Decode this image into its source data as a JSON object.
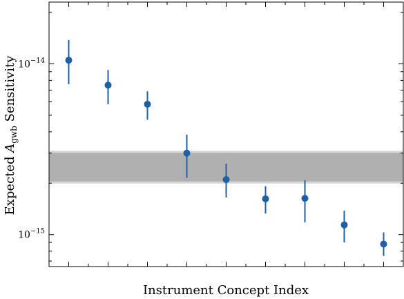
{
  "chart_data": {
    "type": "scatter",
    "xlabel": "Instrument Concept Index",
    "ylabel_prefix": "Expected ",
    "ylabel_symbol": "A",
    "ylabel_subscript": "gwb",
    "ylabel_suffix": " Sensitivity",
    "yscale": "log",
    "xlim": [
      0.5,
      9.5
    ],
    "ylim": [
      6.5e-16,
      2.3e-14
    ],
    "x_ticks": [
      1,
      2,
      3,
      4,
      5,
      6,
      7,
      8,
      9
    ],
    "y_major_ticks": [
      {
        "value": 1e-15,
        "base": "10",
        "exp": "−15"
      },
      {
        "value": 1e-14,
        "base": "10",
        "exp": "−14"
      }
    ],
    "series": [
      {
        "color": "#1f5fa8",
        "points": [
          {
            "x": 1,
            "y": 1.05e-14,
            "y_low": 7.6e-15,
            "y_high": 1.38e-14
          },
          {
            "x": 2,
            "y": 7.5e-15,
            "y_low": 5.8e-15,
            "y_high": 9.2e-15
          },
          {
            "x": 3,
            "y": 5.8e-15,
            "y_low": 4.7e-15,
            "y_high": 6.9e-15
          },
          {
            "x": 4,
            "y": 3e-15,
            "y_low": 2.15e-15,
            "y_high": 3.85e-15
          },
          {
            "x": 5,
            "y": 2.1e-15,
            "y_low": 1.65e-15,
            "y_high": 2.6e-15
          },
          {
            "x": 6,
            "y": 1.62e-15,
            "y_low": 1.33e-15,
            "y_high": 1.92e-15
          },
          {
            "x": 7,
            "y": 1.63e-15,
            "y_low": 1.18e-15,
            "y_high": 2.08e-15
          },
          {
            "x": 8,
            "y": 1.14e-15,
            "y_low": 9e-16,
            "y_high": 1.38e-15
          },
          {
            "x": 9,
            "y": 8.8e-16,
            "y_low": 7.5e-16,
            "y_high": 1.03e-15
          }
        ]
      }
    ],
    "band": {
      "y_low": 2.02e-15,
      "y_high": 3.05e-15,
      "fill": "#b0b0b0",
      "edge": "#d4d4d4"
    },
    "grid": false
  }
}
